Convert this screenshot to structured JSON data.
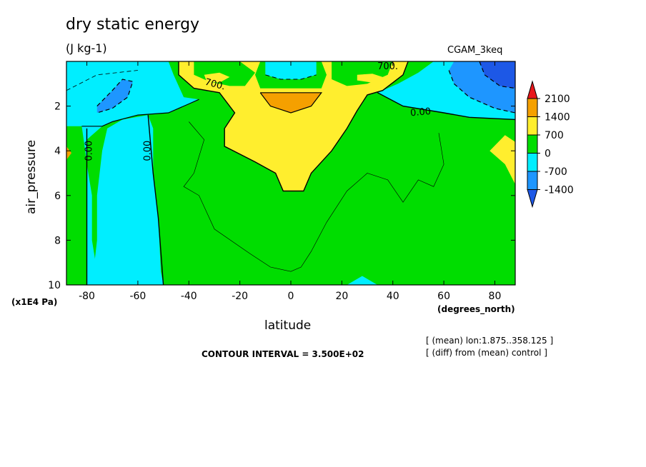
{
  "chart_data": {
    "type": "heatmap",
    "title": "dry static energy",
    "units": "(J kg-1)",
    "dataset": "CGAM_3keq",
    "xlabel": "latitude",
    "x_units": "(degrees_north)",
    "ylabel": "air_pressure",
    "y_units": "(x1E4 Pa)",
    "xlim": [
      -88,
      88
    ],
    "ylim": [
      0,
      10
    ],
    "y_inverted": true,
    "x_ticks": [
      -80,
      -60,
      -40,
      -20,
      0,
      20,
      40,
      60,
      80
    ],
    "y_ticks": [
      2,
      4,
      6,
      8,
      10
    ],
    "contour_interval": "CONTOUR INTERVAL = 3.500E+02",
    "notes": [
      "[ (mean) lon:1.875..358.125 ]",
      "[ (diff) from (mean) control ]"
    ],
    "colorbar": {
      "labels": [
        "2100",
        "1400",
        "700",
        "0",
        "-700",
        "-1400"
      ],
      "colors": [
        "#e8161b",
        "#f5a000",
        "#ffee2e",
        "#00dd00",
        "#00eeff",
        "#1e96ff",
        "#1d58e6"
      ]
    },
    "contour_labels": [
      "700.",
      "700.",
      "0.00",
      "0.00",
      "0.00"
    ],
    "regions": [
      {
        "level": "-700 to 0",
        "lat": [
          -88,
          -50
        ],
        "pressure": [
          0.5,
          10
        ]
      },
      {
        "level": "-1400 to -700",
        "lat": [
          -75,
          -60
        ],
        "pressure": [
          0.8,
          2.1
        ]
      },
      {
        "level": "700 to 1400",
        "lat": [
          -38,
          38
        ],
        "pressure": [
          0.2,
          5.8
        ]
      },
      {
        "level": "1400 to 2100",
        "lat": [
          -12,
          12
        ],
        "pressure": [
          1.4,
          2.2
        ]
      },
      {
        "level": "-700 to 0",
        "lat": [
          -10,
          12
        ],
        "pressure": [
          0,
          0.8
        ]
      },
      {
        "level": "-1400 to -700",
        "lat": [
          60,
          88
        ],
        "pressure": [
          0,
          2.6
        ]
      },
      {
        "level": "700 to 1400",
        "lat": [
          78,
          88
        ],
        "pressure": [
          3.2,
          5.5
        ]
      }
    ]
  }
}
